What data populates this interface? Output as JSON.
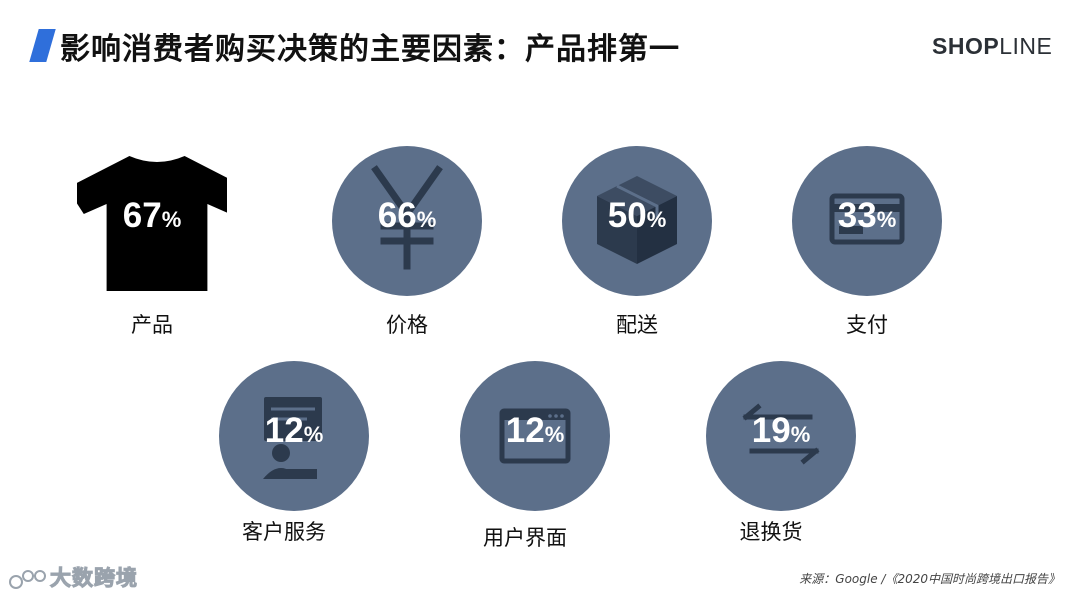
{
  "title": "影响消费者购买决策的主要因素：产品排第一",
  "brand": {
    "part1": "SHOP",
    "part2": "LINE"
  },
  "chart_data": {
    "type": "icon-percentage",
    "unit": "%",
    "items": [
      {
        "label": "产品",
        "value": 67,
        "icon": "tshirt-icon"
      },
      {
        "label": "价格",
        "value": 66,
        "icon": "yuan-icon"
      },
      {
        "label": "配送",
        "value": 50,
        "icon": "box-icon"
      },
      {
        "label": "支付",
        "value": 33,
        "icon": "card-icon"
      },
      {
        "label": "客户服务",
        "value": 12,
        "icon": "support-icon"
      },
      {
        "label": "用户界面",
        "value": 12,
        "icon": "browser-icon"
      },
      {
        "label": "退换货",
        "value": 19,
        "icon": "exchange-icon"
      }
    ]
  },
  "watermark": "大数跨境",
  "source": "来源：Google /《2020中国时尚跨境出口报告》",
  "colors": {
    "accent": "#2f6fdb",
    "circle": "#5c6f8a",
    "icon_dark": "#2c3a4d"
  }
}
